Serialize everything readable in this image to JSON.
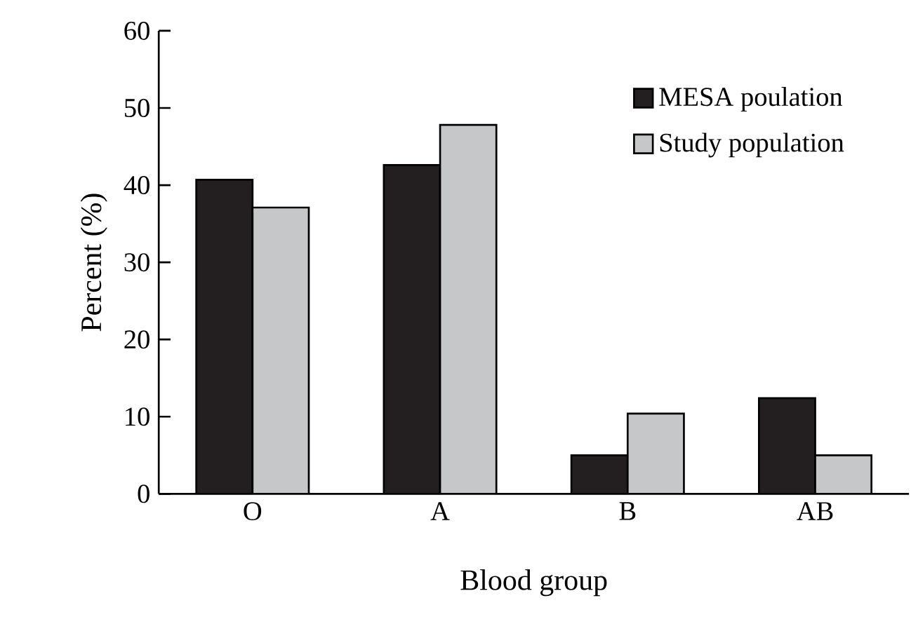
{
  "chart_data": {
    "type": "bar",
    "xlabel": "Blood group",
    "ylabel": "Percent (%)",
    "categories": [
      "O",
      "A",
      "B",
      "AB"
    ],
    "series": [
      {
        "name": "MESA poulation",
        "color": "#231f20",
        "values": [
          40.7,
          42.6,
          5.0,
          12.4
        ]
      },
      {
        "name": "Study population",
        "color": "#c6c7c9",
        "values": [
          37.1,
          47.8,
          10.4,
          5.0
        ]
      }
    ],
    "ylim": [
      0,
      60
    ],
    "yticks": [
      0,
      10,
      20,
      30,
      40,
      50,
      60
    ],
    "grid": false,
    "legend": "top right"
  }
}
